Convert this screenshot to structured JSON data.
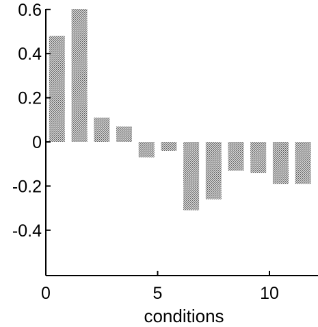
{
  "chart_data": {
    "type": "bar",
    "title": "",
    "xlabel": "conditions",
    "ylabel": "",
    "xlim": [
      0,
      12
    ],
    "ylim": [
      -0.6,
      0.6
    ],
    "grid": false,
    "x": [
      1,
      2,
      3,
      4,
      5,
      6,
      7,
      8,
      9,
      10,
      11,
      12
    ],
    "values": [
      0.48,
      0.61,
      0.11,
      0.07,
      -0.07,
      -0.04,
      -0.31,
      -0.26,
      -0.13,
      -0.14,
      -0.19,
      -0.19
    ],
    "x_ticks": [
      0,
      5,
      10
    ],
    "x_tick_labels": [
      "0",
      "5",
      "10"
    ],
    "y_ticks": [
      0.6,
      0.4,
      0.2,
      0,
      -0.2,
      -0.4
    ],
    "y_tick_labels": [
      "0.6",
      "0.4",
      "0.2",
      "0",
      "-0.2",
      "-0.4"
    ],
    "bar_color": "#a9a9a9"
  }
}
